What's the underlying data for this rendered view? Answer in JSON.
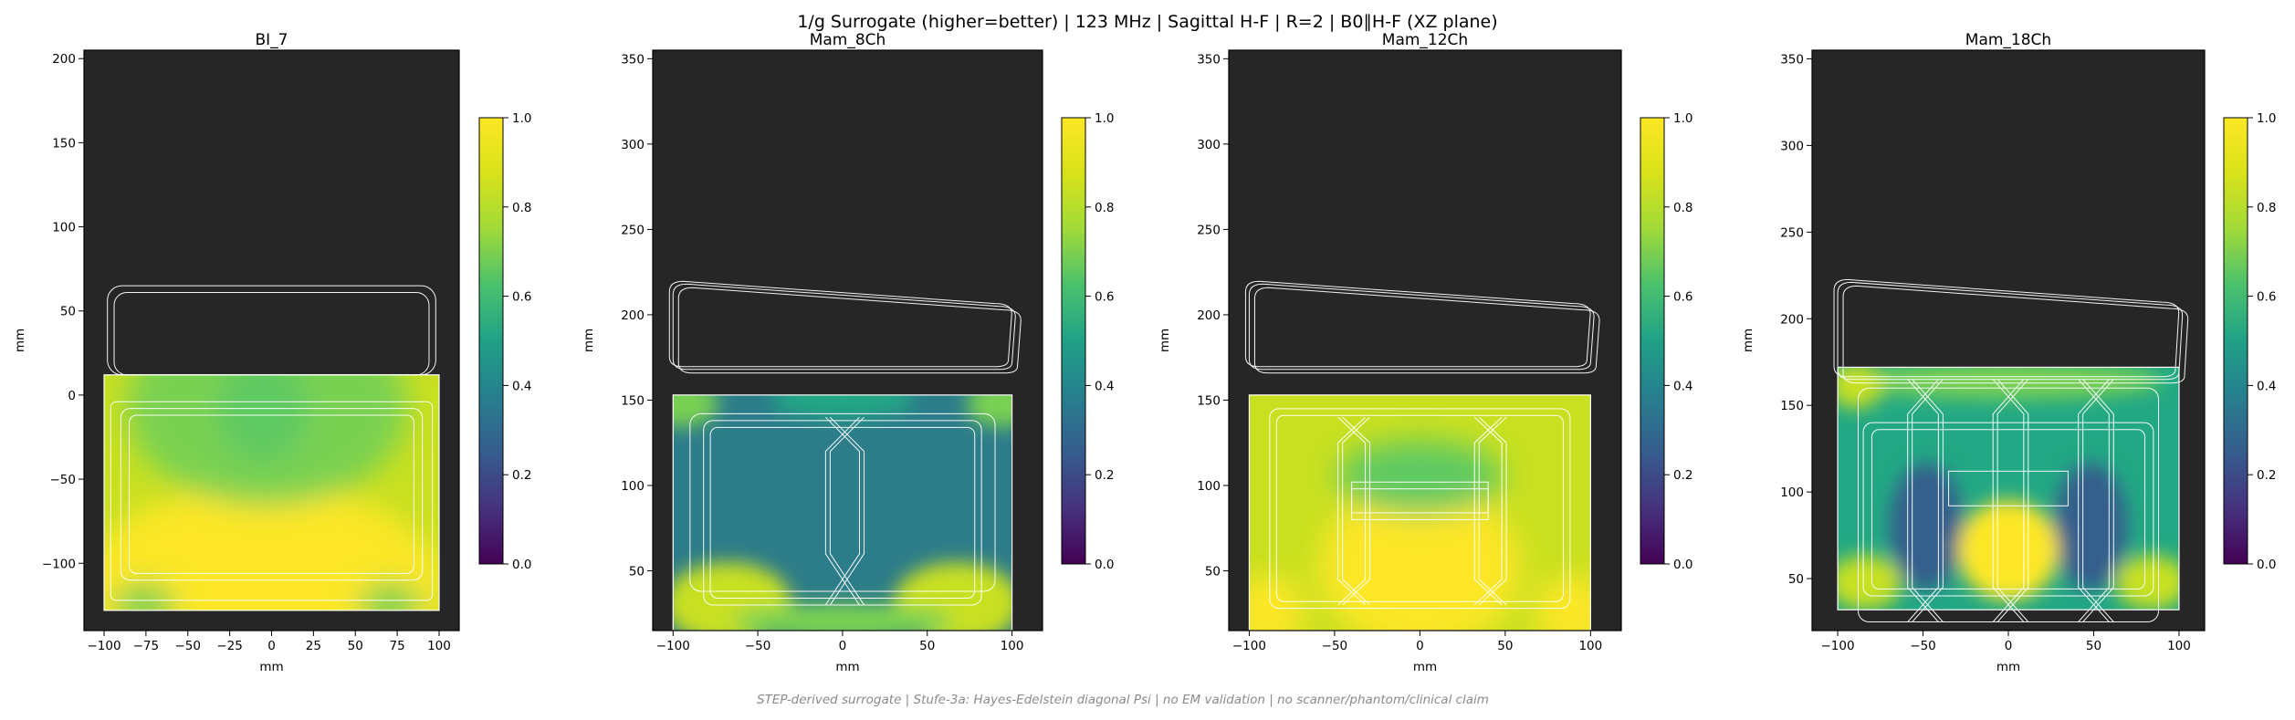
{
  "title": "1/g Surrogate (higher=better) | 123 MHz | Sagittal H-F | R=2 | B0∥H-F (XZ plane)",
  "footer": "STEP-derived surrogate | Stufe-3a: Hayes-Edelstein diagonal Psi | no EM validation | no scanner/phantom/clinical claim",
  "colors": {
    "background_panel": "#262626",
    "coil_outline": "#ffffff",
    "colormap": "viridis"
  },
  "chart_data": [
    {
      "type": "heatmap",
      "title": "BI_7",
      "xlabel": "mm",
      "ylabel": "mm",
      "xlim": [
        -112,
        112
      ],
      "ylim": [
        -140,
        205
      ],
      "xticks": [
        -100,
        -75,
        -50,
        -25,
        0,
        25,
        50,
        75,
        100
      ],
      "yticks": [
        -100,
        -50,
        0,
        50,
        100,
        150,
        200
      ],
      "field_extent": {
        "x": [
          -100,
          100
        ],
        "y": [
          -128,
          12
        ]
      },
      "pattern": "arc",
      "colorbar": {
        "min": 0.0,
        "max": 1.0,
        "ticks": [
          "0.0",
          "0.2",
          "0.4",
          "0.6",
          "0.8",
          "1.0"
        ]
      }
    },
    {
      "type": "heatmap",
      "title": "Mam_8Ch",
      "xlabel": "mm",
      "ylabel": "mm",
      "xlim": [
        -112,
        118
      ],
      "ylim": [
        15,
        355
      ],
      "xticks": [
        -100,
        -50,
        0,
        50,
        100
      ],
      "yticks": [
        50,
        100,
        150,
        200,
        250,
        300,
        350
      ],
      "field_extent": {
        "x": [
          -100,
          100
        ],
        "y": [
          15,
          153
        ]
      },
      "pattern": "low",
      "colorbar": {
        "min": 0.0,
        "max": 1.0,
        "ticks": [
          "0.0",
          "0.2",
          "0.4",
          "0.6",
          "0.8",
          "1.0"
        ]
      }
    },
    {
      "type": "heatmap",
      "title": "Mam_12Ch",
      "xlabel": "mm",
      "ylabel": "mm",
      "xlim": [
        -112,
        118
      ],
      "ylim": [
        15,
        355
      ],
      "xticks": [
        -100,
        -50,
        0,
        50,
        100
      ],
      "yticks": [
        50,
        100,
        150,
        200,
        250,
        300,
        350
      ],
      "field_extent": {
        "x": [
          -100,
          100
        ],
        "y": [
          15,
          153
        ]
      },
      "pattern": "high",
      "colorbar": {
        "min": 0.0,
        "max": 1.0,
        "ticks": [
          "0.0",
          "0.2",
          "0.4",
          "0.6",
          "0.8",
          "1.0"
        ]
      }
    },
    {
      "type": "heatmap",
      "title": "Mam_18Ch",
      "xlabel": "mm",
      "ylabel": "mm",
      "xlim": [
        -115,
        115
      ],
      "ylim": [
        20,
        355
      ],
      "xticks": [
        -100,
        -50,
        0,
        50,
        100
      ],
      "yticks": [
        50,
        100,
        150,
        200,
        250,
        300,
        350
      ],
      "field_extent": {
        "x": [
          -100,
          100
        ],
        "y": [
          32,
          172
        ]
      },
      "pattern": "mixed",
      "colorbar": {
        "min": 0.0,
        "max": 1.0,
        "ticks": [
          "0.0",
          "0.2",
          "0.4",
          "0.6",
          "0.8",
          "1.0"
        ]
      }
    }
  ]
}
